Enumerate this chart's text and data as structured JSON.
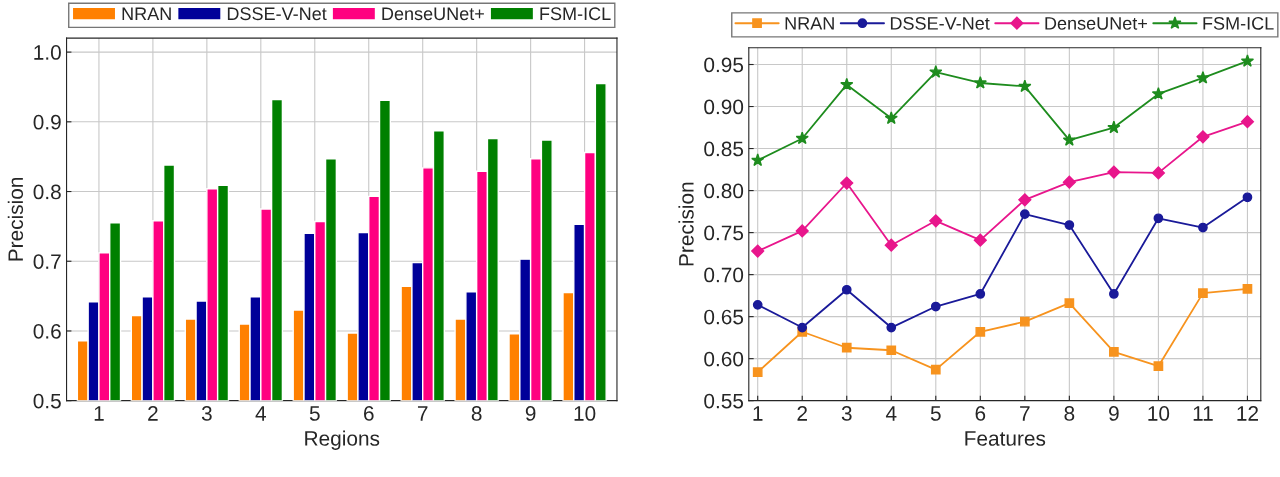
{
  "chart_data": [
    {
      "type": "bar",
      "xlabel": "Regions",
      "ylabel": "Precision",
      "categories": [
        "1",
        "2",
        "3",
        "4",
        "5",
        "6",
        "7",
        "8",
        "9",
        "10"
      ],
      "ylim": [
        0.5,
        1.02
      ],
      "yticks": [
        {
          "value": 0.5,
          "label": "0.5"
        },
        {
          "value": 0.6,
          "label": "0.6"
        },
        {
          "value": 0.7,
          "label": "0.7"
        },
        {
          "value": 0.8,
          "label": "0.8"
        },
        {
          "value": 0.9,
          "label": "0.9"
        },
        {
          "value": 1.0,
          "label": "1.0"
        }
      ],
      "grid": true,
      "legend": "top",
      "series": [
        {
          "name": "NRAN",
          "color": "#ff8000",
          "values": [
            0.586,
            0.622,
            0.617,
            0.61,
            0.63,
            0.597,
            0.664,
            0.617,
            0.596,
            0.655
          ]
        },
        {
          "name": "DSSE-V-Net",
          "color": "#000099",
          "values": [
            0.642,
            0.649,
            0.643,
            0.649,
            0.74,
            0.741,
            0.698,
            0.656,
            0.703,
            0.753
          ]
        },
        {
          "name": "DenseUNet+",
          "color": "#ff0080",
          "values": [
            0.712,
            0.758,
            0.804,
            0.775,
            0.757,
            0.793,
            0.834,
            0.829,
            0.847,
            0.856
          ]
        },
        {
          "name": "FSM-ICL",
          "color": "#008000",
          "values": [
            0.755,
            0.838,
            0.809,
            0.932,
            0.847,
            0.931,
            0.887,
            0.876,
            0.874,
            0.955
          ]
        }
      ]
    },
    {
      "type": "line",
      "xlabel": "Features",
      "ylabel": "Precision",
      "x": [
        1,
        2,
        3,
        4,
        5,
        6,
        7,
        8,
        9,
        10,
        11,
        12
      ],
      "xlim": [
        0.8,
        12.3
      ],
      "xticks": [
        1,
        2,
        3,
        4,
        5,
        6,
        7,
        8,
        9,
        10,
        11,
        12
      ],
      "ylim": [
        0.55,
        0.97
      ],
      "yticks": [
        0.55,
        {
          "value": 0.6,
          "label": "0.60"
        },
        0.65,
        {
          "value": 0.7,
          "label": "0.70"
        },
        0.75,
        {
          "value": 0.8,
          "label": "0.80"
        },
        0.85,
        {
          "value": 0.9,
          "label": "0.90"
        },
        0.95
      ],
      "grid": true,
      "legend": "top",
      "line_style": "solid",
      "series": [
        {
          "name": "NRAN",
          "color": "#f7931e",
          "marker": "square",
          "values": [
            0.584,
            0.632,
            0.613,
            0.61,
            0.587,
            0.632,
            0.644,
            0.666,
            0.608,
            0.591,
            0.678,
            0.683
          ]
        },
        {
          "name": "DSSE-V-Net",
          "color": "#1a1a99",
          "marker": "circle",
          "values": [
            0.664,
            0.637,
            0.682,
            0.637,
            0.662,
            0.677,
            0.772,
            0.759,
            0.677,
            0.767,
            0.756,
            0.792
          ]
        },
        {
          "name": "DenseUNet+",
          "color": "#e8168c",
          "marker": "diamond",
          "values": [
            0.728,
            0.752,
            0.809,
            0.735,
            0.764,
            0.741,
            0.789,
            0.81,
            0.822,
            0.821,
            0.864,
            0.882
          ]
        },
        {
          "name": "FSM-ICL",
          "color": "#1e8c1e",
          "marker": "star",
          "values": [
            0.836,
            0.862,
            0.926,
            0.886,
            0.941,
            0.928,
            0.924,
            0.86,
            0.875,
            0.915,
            0.934,
            0.954
          ]
        }
      ]
    }
  ]
}
